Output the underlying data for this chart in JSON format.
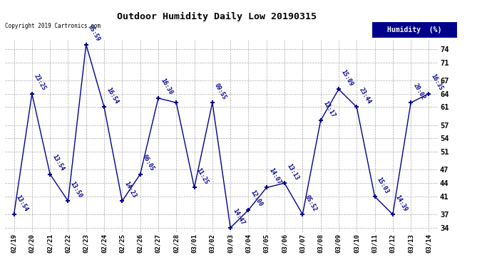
{
  "title": "Outdoor Humidity Daily Low 20190315",
  "copyright": "Copyright 2019 Cartronics.com",
  "legend_label": "Humidity  (%)",
  "legend_bg": "#00008b",
  "legend_fg": "#ffffff",
  "line_color": "#00008b",
  "marker_color": "#00008b",
  "background_color": "#ffffff",
  "grid_color": "#aaaaaa",
  "yticks": [
    34,
    37,
    41,
    44,
    47,
    51,
    54,
    57,
    61,
    64,
    67,
    71,
    74
  ],
  "ylim": [
    33,
    76
  ],
  "dates": [
    "02/19",
    "02/20",
    "02/21",
    "02/22",
    "02/23",
    "02/24",
    "02/25",
    "02/26",
    "02/27",
    "02/28",
    "03/01",
    "03/02",
    "03/03",
    "03/04",
    "03/05",
    "03/06",
    "03/07",
    "03/08",
    "03/09",
    "03/10",
    "03/11",
    "03/12",
    "03/13",
    "03/14"
  ],
  "values": [
    37,
    64,
    46,
    40,
    75,
    61,
    40,
    46,
    63,
    62,
    43,
    62,
    34,
    38,
    43,
    44,
    37,
    58,
    65,
    61,
    41,
    37,
    62,
    64
  ],
  "point_labels": [
    "13:54",
    "23:25",
    "13:54",
    "13:50",
    "05:59",
    "16:54",
    "14:23",
    "06:05",
    "16:30",
    "",
    "11:25",
    "09:55",
    "14:47",
    "12:00",
    "14:07",
    "13:13",
    "05:52",
    "12:17",
    "15:09",
    "23:44",
    "15:03",
    "14:39",
    "20:02",
    "16:35"
  ]
}
